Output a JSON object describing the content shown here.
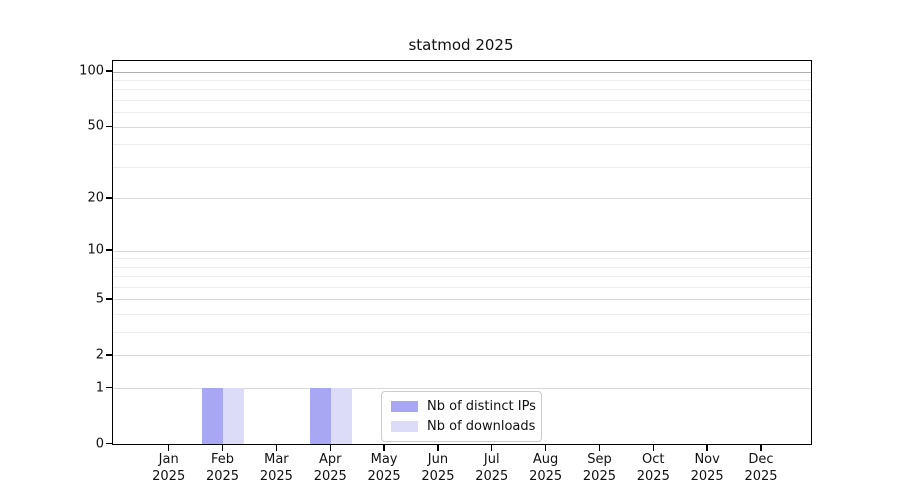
{
  "title": "statmod 2025",
  "chart_data": {
    "type": "bar",
    "title": "statmod 2025",
    "categories": [
      "Jan 2025",
      "Feb 2025",
      "Mar 2025",
      "Apr 2025",
      "May 2025",
      "Jun 2025",
      "Jul 2025",
      "Aug 2025",
      "Sep 2025",
      "Oct 2025",
      "Nov 2025",
      "Dec 2025"
    ],
    "series": [
      {
        "name": "Nb of distinct IPs",
        "color": "#a7a7f3",
        "values": [
          0,
          1,
          0,
          1,
          0,
          0,
          0,
          0,
          0,
          0,
          0,
          0
        ]
      },
      {
        "name": "Nb of downloads",
        "color": "#dcdcf9",
        "values": [
          0,
          1,
          0,
          1,
          0,
          0,
          0,
          0,
          0,
          0,
          0,
          0
        ]
      }
    ],
    "xlabel": "",
    "ylabel": "",
    "yscale": "log1p",
    "ylim": [
      0,
      100
    ],
    "yticks": [
      0,
      1,
      2,
      5,
      10,
      20,
      50,
      100
    ],
    "minor_gridlines": [
      3,
      4,
      6,
      7,
      8,
      9,
      30,
      40,
      60,
      70,
      80,
      90
    ],
    "grid": "horizontal",
    "legend_position": "inside-bottom-center"
  },
  "colors": {
    "axis": "#000000",
    "text": "#111111",
    "grid_major": "#d9d9d9",
    "grid_minor": "#ededed",
    "grid_top": "#b0b0b0",
    "legend_border": "#cccccc",
    "background": "#ffffff"
  }
}
